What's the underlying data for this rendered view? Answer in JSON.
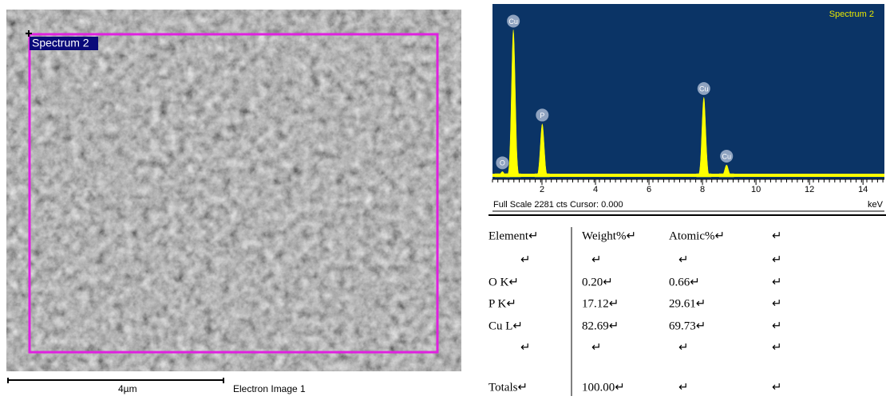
{
  "image": {
    "region_label": "Spectrum 2",
    "scale_bar": "4µm",
    "caption": "Electron Image 1"
  },
  "chart_data": {
    "type": "spectrum",
    "title": "Spectrum 2",
    "peaks": [
      {
        "label": "O",
        "energy": 0.52,
        "counts": 70
      },
      {
        "label": "Cu",
        "energy": 0.93,
        "counts": 1940
      },
      {
        "label": "P",
        "energy": 2.01,
        "counts": 700
      },
      {
        "label": "Cu",
        "energy": 8.05,
        "counts": 1050
      },
      {
        "label": "Cu",
        "energy": 8.9,
        "counts": 158
      }
    ],
    "xlim": [
      0.15,
      14.8
    ],
    "ylim": [
      0,
      2281
    ],
    "xticks": [
      2,
      4,
      6,
      8,
      10,
      12,
      14
    ],
    "x_label": "keV",
    "footer": "Full Scale 2281 cts Cursor: 0.000",
    "color": "#ffff00",
    "background": "#0b3466"
  },
  "table": {
    "rows": [
      [
        "Element↵",
        "Weight%↵",
        "Atomic%↵",
        "↵"
      ],
      [
        "↵",
        "↵",
        "↵",
        "↵"
      ],
      [
        "O K↵",
        "0.20↵",
        "0.66↵",
        "↵"
      ],
      [
        "P K↵",
        "17.12↵",
        "29.61↵",
        "↵"
      ],
      [
        "Cu L↵",
        "82.69↵",
        "69.73↵",
        "↵"
      ],
      [
        "↵",
        "↵",
        "↵",
        "↵"
      ],
      [
        "Totals↵",
        "100.00↵",
        "↵",
        "↵"
      ]
    ]
  }
}
